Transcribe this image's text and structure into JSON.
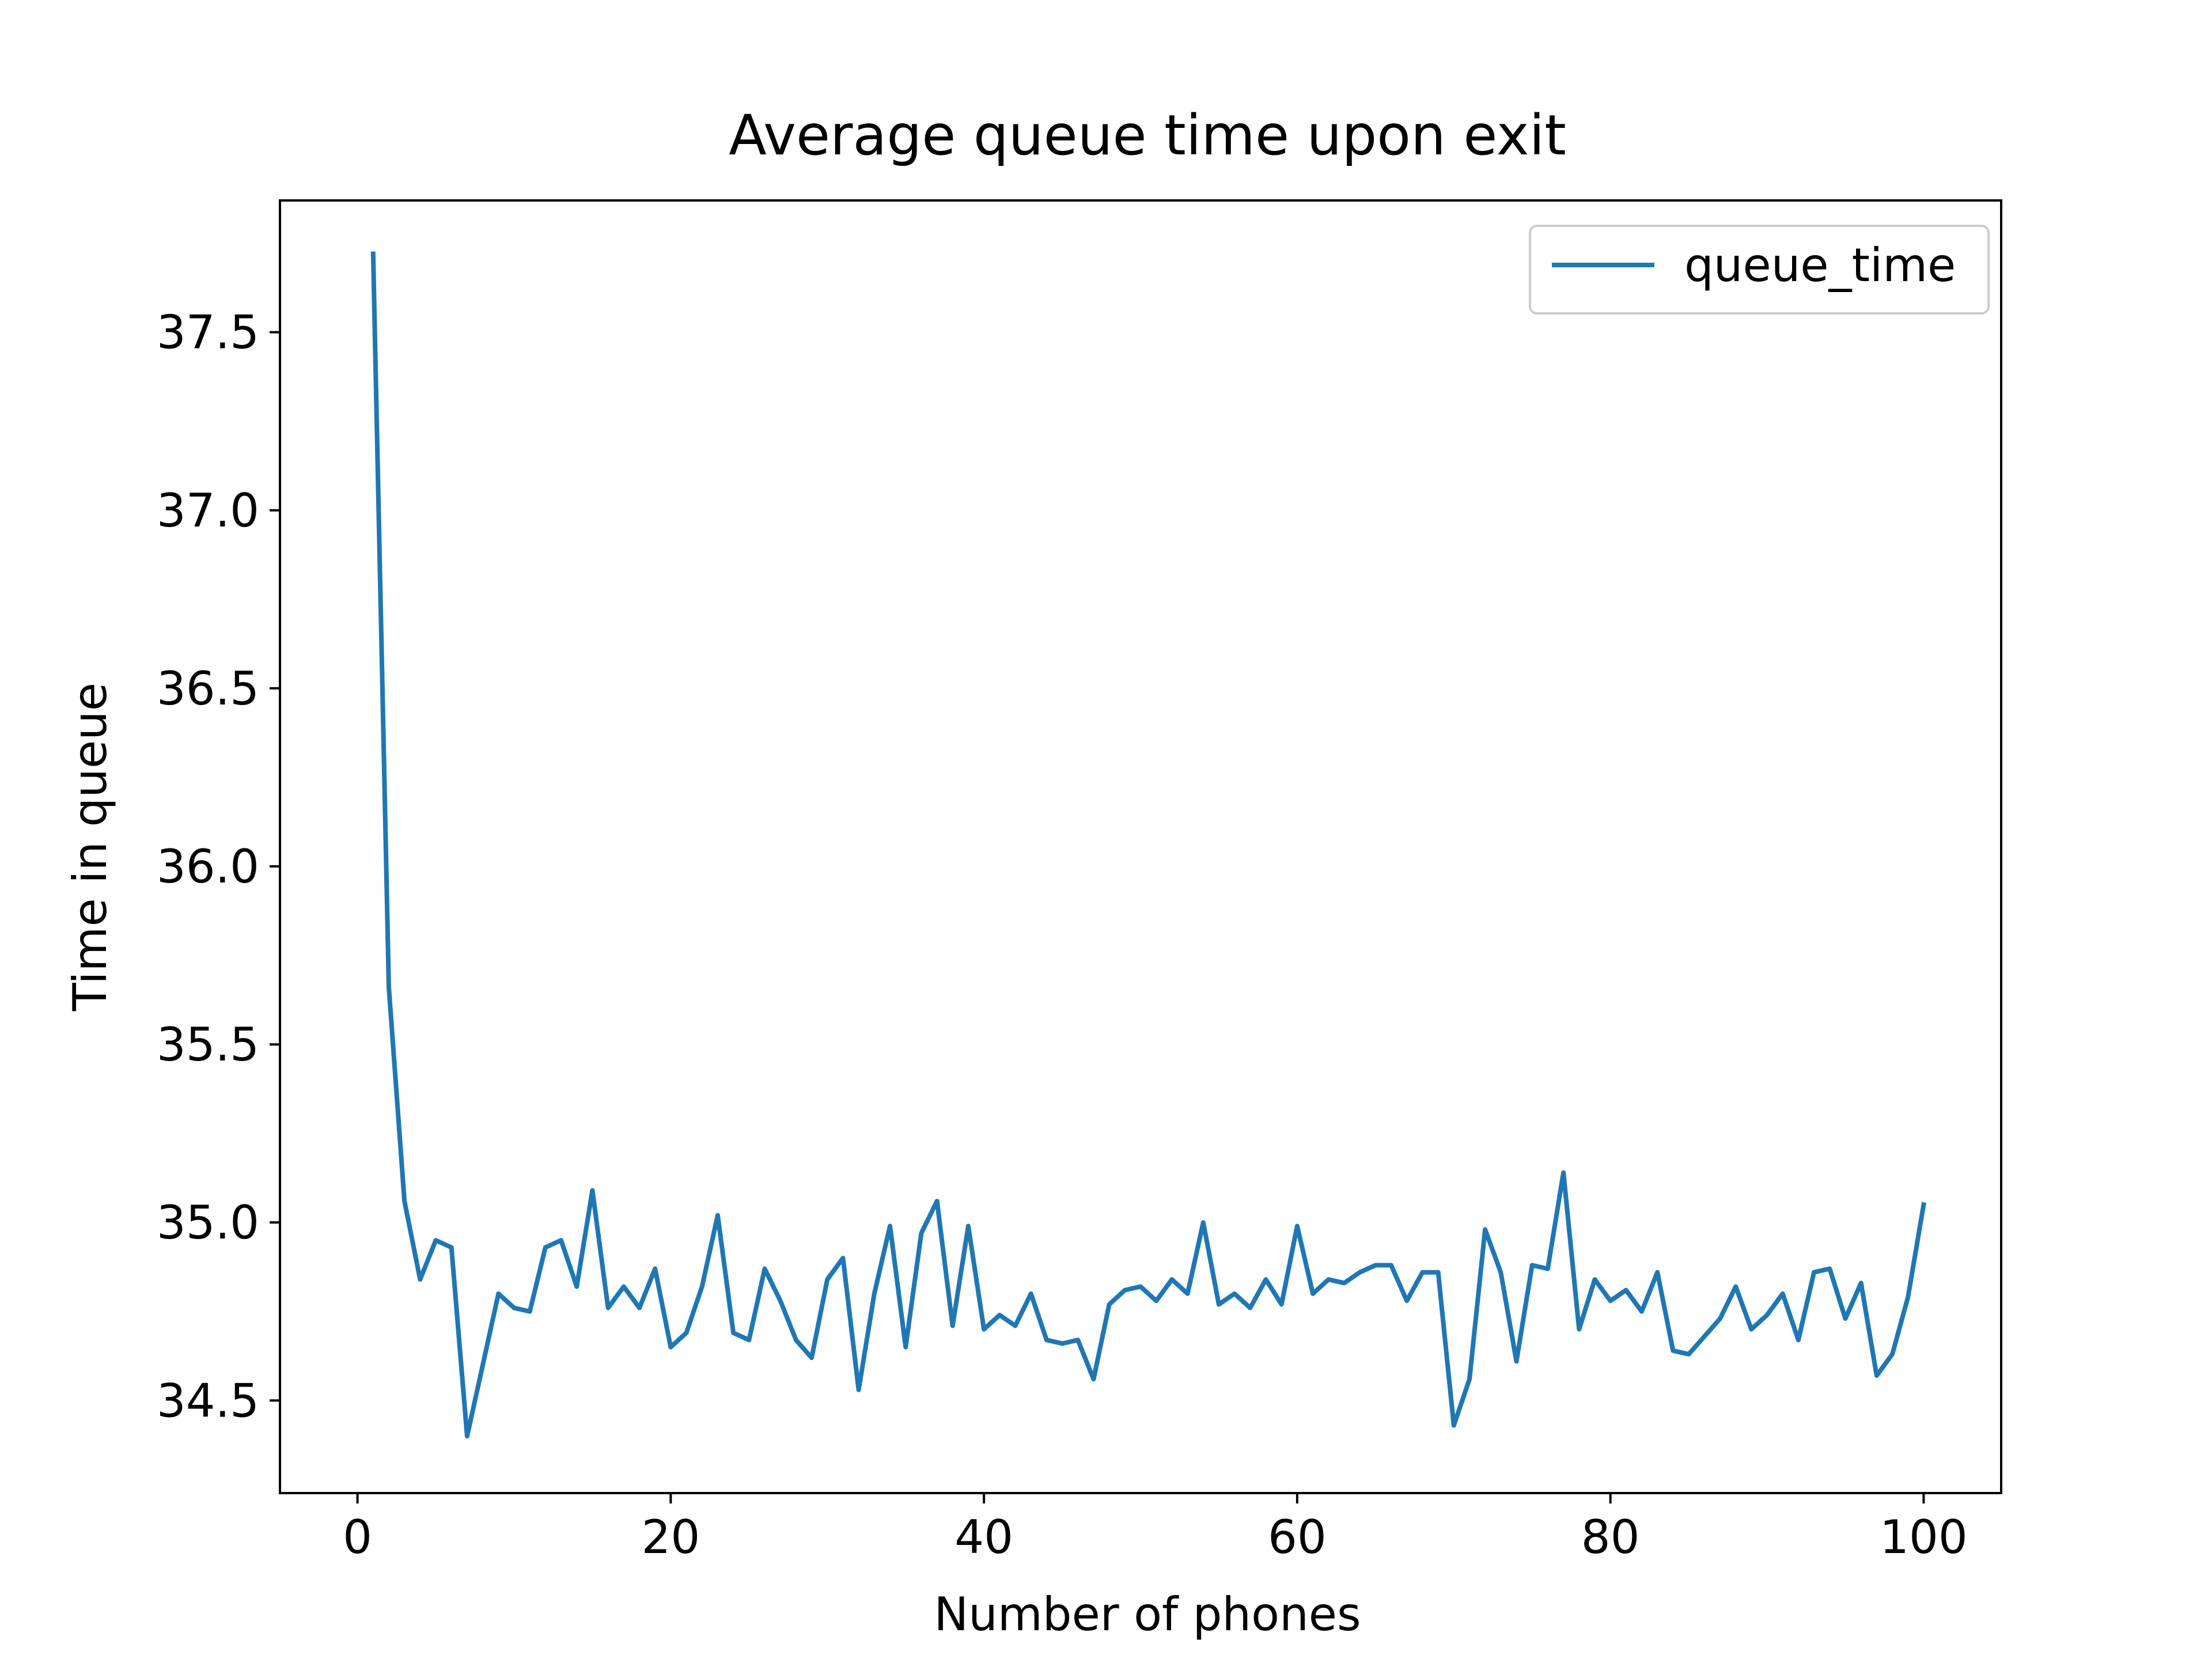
{
  "chart_data": {
    "type": "line",
    "title": "Average queue time upon exit",
    "xlabel": "Number of phones",
    "ylabel": "Time in queue",
    "xlim": [
      -4.95,
      104.95
    ],
    "ylim": [
      34.24,
      37.87
    ],
    "xticks": [
      0,
      20,
      40,
      60,
      80,
      100
    ],
    "xtick_labels": [
      "0",
      "20",
      "40",
      "60",
      "80",
      "100"
    ],
    "yticks": [
      34.5,
      35.0,
      35.5,
      36.0,
      36.5,
      37.0,
      37.5
    ],
    "ytick_labels": [
      "34.5",
      "35.0",
      "35.5",
      "36.0",
      "36.5",
      "37.0",
      "37.5"
    ],
    "grid": false,
    "legend": {
      "position": "top-right"
    },
    "series": [
      {
        "name": "queue_time",
        "color": "#1f77b4",
        "x": [
          1,
          2,
          3,
          4,
          5,
          6,
          7,
          8,
          9,
          10,
          11,
          12,
          13,
          14,
          15,
          16,
          17,
          18,
          19,
          20,
          21,
          22,
          23,
          24,
          25,
          26,
          27,
          28,
          29,
          30,
          31,
          32,
          33,
          34,
          35,
          36,
          37,
          38,
          39,
          40,
          41,
          42,
          43,
          44,
          45,
          46,
          47,
          48,
          49,
          50,
          51,
          52,
          53,
          54,
          55,
          56,
          57,
          58,
          59,
          60,
          61,
          62,
          63,
          64,
          65,
          66,
          67,
          68,
          69,
          70,
          71,
          72,
          73,
          74,
          75,
          76,
          77,
          78,
          79,
          80,
          81,
          82,
          83,
          84,
          85,
          86,
          87,
          88,
          89,
          90,
          91,
          92,
          93,
          94,
          95,
          96,
          97,
          98,
          99,
          100
        ],
        "values": [
          37.72,
          35.66,
          35.06,
          34.84,
          34.95,
          34.93,
          34.4,
          34.6,
          34.8,
          34.76,
          34.75,
          34.93,
          34.95,
          34.82,
          35.09,
          34.76,
          34.82,
          34.76,
          34.87,
          34.65,
          34.69,
          34.82,
          35.02,
          34.69,
          34.67,
          34.87,
          34.78,
          34.67,
          34.62,
          34.84,
          34.9,
          34.53,
          34.8,
          34.99,
          34.65,
          34.97,
          35.06,
          34.71,
          34.99,
          34.7,
          34.74,
          34.71,
          34.8,
          34.67,
          34.66,
          34.67,
          34.56,
          34.77,
          34.81,
          34.82,
          34.78,
          34.84,
          34.8,
          35.0,
          34.77,
          34.8,
          34.76,
          34.84,
          34.77,
          34.99,
          34.8,
          34.84,
          34.83,
          34.86,
          34.88,
          34.88,
          34.78,
          34.86,
          34.86,
          34.43,
          34.56,
          34.98,
          34.86,
          34.61,
          34.88,
          34.87,
          35.14,
          34.7,
          34.84,
          34.78,
          34.81,
          34.75,
          34.86,
          34.64,
          34.63,
          34.68,
          34.73,
          34.82,
          34.7,
          34.74,
          34.8,
          34.67,
          34.86,
          34.87,
          34.73,
          34.83,
          34.57,
          34.63,
          34.79,
          35.05
        ]
      }
    ]
  }
}
